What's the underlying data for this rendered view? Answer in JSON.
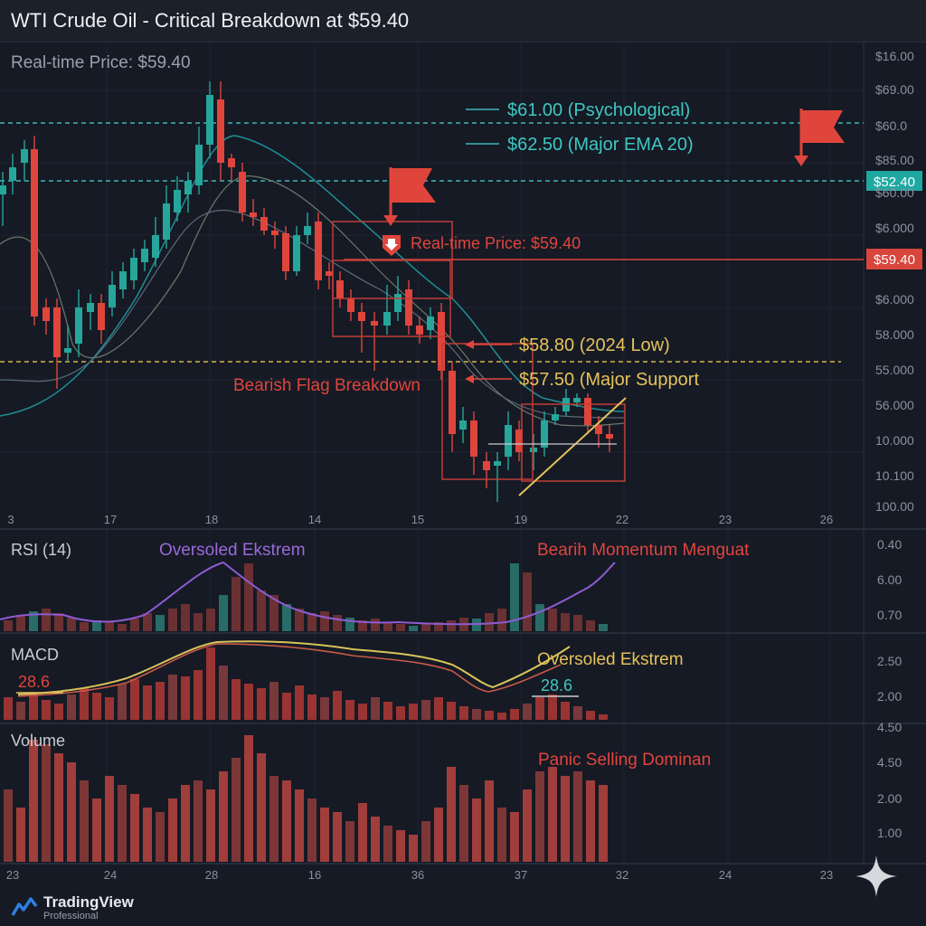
{
  "header": {
    "title": "WTI Crude Oil - Critical Breakdown at $59.40"
  },
  "main_panel": {
    "realtime_label": "Real-time Price: $59.40",
    "price_axis_labels": [
      "$16.00",
      "$69.00",
      "$60.0",
      "$85.00",
      "$60.00",
      "$6.000",
      "$6.000",
      "58.000",
      "55.000",
      "56.000",
      "10.000",
      "10.100",
      "100.00"
    ],
    "time_axis_labels": [
      "3",
      "17",
      "18",
      "14",
      "15",
      "19",
      "22",
      "23",
      "26"
    ],
    "price_tag_top": "$52.40",
    "price_tag_current": "$59.40",
    "annotations": {
      "level_61": "$61.00 (Psychological)",
      "level_62": "$62.50 (Major EMA 20)",
      "realtime_marker": "Real-time Price: $59.40",
      "level_58": "$58.80 (2024 Low)",
      "level_57": "$57.50 (Major Support",
      "breakdown": "Bearish Flag Breakdown"
    }
  },
  "rsi_panel": {
    "label": "RSI (14)",
    "note_left": "Oversoled Ekstrem",
    "note_right": "Bearih Momentum Menguat",
    "axis_labels": [
      "0.40",
      "6.00",
      "0.70"
    ]
  },
  "macd_panel": {
    "label": "MACD",
    "value_left": "28.6",
    "value_right": "28.6",
    "note": "Oversoled Ekstrem",
    "axis_labels": [
      "2.50",
      "2.00"
    ]
  },
  "volume_panel": {
    "label": "Volume",
    "note": "Panic Selling Dominan",
    "axis_labels": [
      "4.50",
      "4.50",
      "2.00",
      "1.00"
    ],
    "time_axis_labels": [
      "23",
      "24",
      "28",
      "16",
      "36",
      "37",
      "32",
      "24",
      "23"
    ]
  },
  "colors": {
    "background": "#151a25",
    "bull": "#26a69a",
    "bear": "#e0453c",
    "teal_line": "#1fb3b3",
    "yellow": "#e6c25a",
    "purple": "#8e5bd1",
    "grid": "#222836"
  },
  "icons": [
    "flag-icon",
    "arrow-down-icon",
    "tradingview-logo-icon",
    "sparkle-icon"
  ],
  "branding": {
    "name": "TradingView",
    "sub": "Professional"
  }
}
